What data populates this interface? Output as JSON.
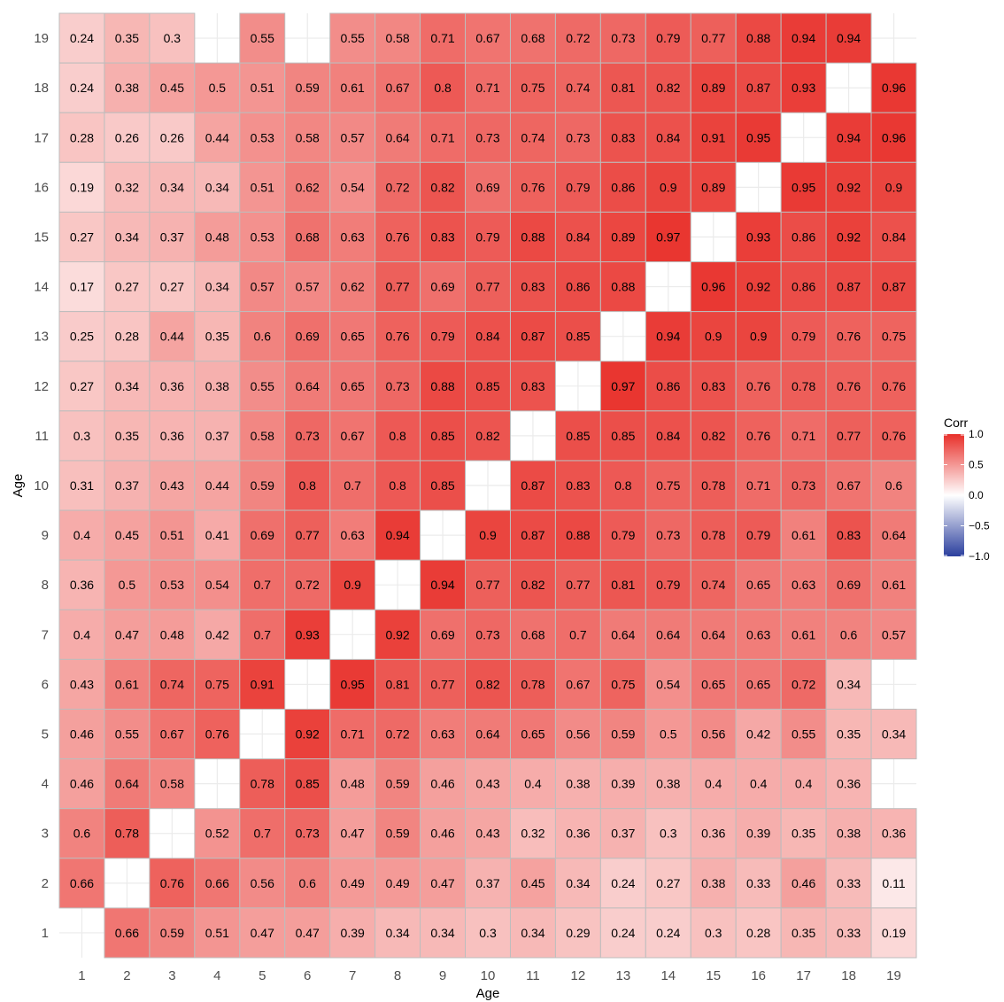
{
  "chart_data": {
    "type": "heatmap",
    "title": "",
    "xlabel": "Age",
    "ylabel": "Age",
    "x_categories": [
      "1",
      "2",
      "3",
      "4",
      "5",
      "6",
      "7",
      "8",
      "9",
      "10",
      "11",
      "12",
      "13",
      "14",
      "15",
      "16",
      "17",
      "18",
      "19"
    ],
    "y_categories": [
      "1",
      "2",
      "3",
      "4",
      "5",
      "6",
      "7",
      "8",
      "9",
      "10",
      "11",
      "12",
      "13",
      "14",
      "15",
      "16",
      "17",
      "18",
      "19"
    ],
    "rows": [
      {
        "y": "19",
        "values": [
          0.24,
          0.35,
          0.3,
          null,
          0.55,
          null,
          0.55,
          0.58,
          0.71,
          0.67,
          0.68,
          0.72,
          0.73,
          0.79,
          0.77,
          0.88,
          0.94,
          0.94,
          null
        ]
      },
      {
        "y": "18",
        "values": [
          0.24,
          0.38,
          0.45,
          0.5,
          0.51,
          0.59,
          0.61,
          0.67,
          0.8,
          0.71,
          0.75,
          0.74,
          0.81,
          0.82,
          0.89,
          0.87,
          0.93,
          null,
          0.96
        ]
      },
      {
        "y": "17",
        "values": [
          0.28,
          0.26,
          0.26,
          0.44,
          0.53,
          0.58,
          0.57,
          0.64,
          0.71,
          0.73,
          0.74,
          0.73,
          0.83,
          0.84,
          0.91,
          0.95,
          null,
          0.94,
          0.96
        ]
      },
      {
        "y": "16",
        "values": [
          0.19,
          0.32,
          0.34,
          0.34,
          0.51,
          0.62,
          0.54,
          0.72,
          0.82,
          0.69,
          0.76,
          0.79,
          0.86,
          0.9,
          0.89,
          null,
          0.95,
          0.92,
          0.9
        ]
      },
      {
        "y": "15",
        "values": [
          0.27,
          0.34,
          0.37,
          0.48,
          0.53,
          0.68,
          0.63,
          0.76,
          0.83,
          0.79,
          0.88,
          0.84,
          0.89,
          0.97,
          null,
          0.93,
          0.86,
          0.92,
          0.84
        ]
      },
      {
        "y": "14",
        "values": [
          0.17,
          0.27,
          0.27,
          0.34,
          0.57,
          0.57,
          0.62,
          0.77,
          0.69,
          0.77,
          0.83,
          0.86,
          0.88,
          null,
          0.96,
          0.92,
          0.86,
          0.87,
          0.87
        ]
      },
      {
        "y": "13",
        "values": [
          0.25,
          0.28,
          0.44,
          0.35,
          0.6,
          0.69,
          0.65,
          0.76,
          0.79,
          0.84,
          0.87,
          0.85,
          null,
          0.94,
          0.9,
          0.9,
          0.79,
          0.76,
          0.75
        ]
      },
      {
        "y": "12",
        "values": [
          0.27,
          0.34,
          0.36,
          0.38,
          0.55,
          0.64,
          0.65,
          0.73,
          0.88,
          0.85,
          0.83,
          null,
          0.97,
          0.86,
          0.83,
          0.76,
          0.78,
          0.76,
          0.76
        ]
      },
      {
        "y": "11",
        "values": [
          0.3,
          0.35,
          0.36,
          0.37,
          0.58,
          0.73,
          0.67,
          0.8,
          0.85,
          0.82,
          null,
          0.85,
          0.85,
          0.84,
          0.82,
          0.76,
          0.71,
          0.77,
          0.76
        ]
      },
      {
        "y": "10",
        "values": [
          0.31,
          0.37,
          0.43,
          0.44,
          0.59,
          0.8,
          0.7,
          0.8,
          0.85,
          null,
          0.87,
          0.83,
          0.8,
          0.75,
          0.78,
          0.71,
          0.73,
          0.67,
          0.6
        ]
      },
      {
        "y": "9",
        "values": [
          0.4,
          0.45,
          0.51,
          0.41,
          0.69,
          0.77,
          0.63,
          0.94,
          null,
          0.9,
          0.87,
          0.88,
          0.79,
          0.73,
          0.78,
          0.79,
          0.61,
          0.83,
          0.64
        ]
      },
      {
        "y": "8",
        "values": [
          0.36,
          0.5,
          0.53,
          0.54,
          0.7,
          0.72,
          0.9,
          null,
          0.94,
          0.77,
          0.82,
          0.77,
          0.81,
          0.79,
          0.74,
          0.65,
          0.63,
          0.69,
          0.61
        ]
      },
      {
        "y": "7",
        "values": [
          0.4,
          0.47,
          0.48,
          0.42,
          0.7,
          0.93,
          null,
          0.92,
          0.69,
          0.73,
          0.68,
          0.7,
          0.64,
          0.64,
          0.64,
          0.63,
          0.61,
          0.6,
          0.57
        ]
      },
      {
        "y": "6",
        "values": [
          0.43,
          0.61,
          0.74,
          0.75,
          0.91,
          null,
          0.95,
          0.81,
          0.77,
          0.82,
          0.78,
          0.67,
          0.75,
          0.54,
          0.65,
          0.65,
          0.72,
          0.34,
          null
        ]
      },
      {
        "y": "5",
        "values": [
          0.46,
          0.55,
          0.67,
          0.76,
          null,
          0.92,
          0.71,
          0.72,
          0.63,
          0.64,
          0.65,
          0.56,
          0.59,
          0.5,
          0.56,
          0.42,
          0.55,
          0.35,
          0.34
        ]
      },
      {
        "y": "4",
        "values": [
          0.46,
          0.64,
          0.58,
          null,
          0.78,
          0.85,
          0.48,
          0.59,
          0.46,
          0.43,
          0.4,
          0.38,
          0.39,
          0.38,
          0.4,
          0.4,
          0.4,
          0.36,
          null
        ]
      },
      {
        "y": "3",
        "values": [
          0.6,
          0.78,
          null,
          0.52,
          0.7,
          0.73,
          0.47,
          0.59,
          0.46,
          0.43,
          0.32,
          0.36,
          0.37,
          0.3,
          0.36,
          0.39,
          0.35,
          0.38,
          0.36
        ]
      },
      {
        "y": "2",
        "values": [
          0.66,
          null,
          0.76,
          0.66,
          0.56,
          0.6,
          0.49,
          0.49,
          0.47,
          0.37,
          0.45,
          0.34,
          0.24,
          0.27,
          0.38,
          0.33,
          0.46,
          0.33,
          0.11
        ]
      },
      {
        "y": "1",
        "values": [
          null,
          0.66,
          0.59,
          0.51,
          0.47,
          0.47,
          0.39,
          0.34,
          0.34,
          0.3,
          0.34,
          0.29,
          0.24,
          0.24,
          0.3,
          0.28,
          0.35,
          0.33,
          0.19
        ]
      }
    ],
    "legend": {
      "title": "Corr",
      "ticks": [
        "1.0",
        "0.5",
        "0.0",
        "−0.5",
        "−1.0"
      ],
      "tick_values": [
        1.0,
        0.5,
        0.0,
        -0.5,
        -1.0
      ],
      "placement": "right",
      "colors": {
        "low": "#2b3f9e",
        "mid": "#ffffff",
        "high": "#e8302a"
      }
    },
    "zlim": [
      -1,
      1
    ],
    "grid": true,
    "tile_border_color": "#bdbdbd",
    "panel_grid_color": "#ebebeb"
  }
}
